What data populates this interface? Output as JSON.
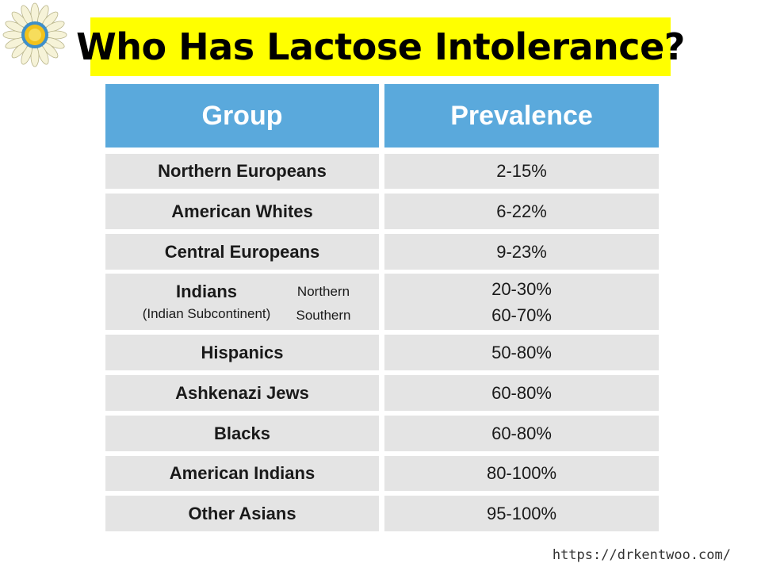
{
  "slide": {
    "title": "Who Has Lactose Intolerance?",
    "footer_url": "https://drkentwoo.com/"
  },
  "table": {
    "headers": [
      "Group",
      "Prevalence"
    ],
    "rows": [
      {
        "group": "Northern Europeans",
        "prevalence": "2-15%"
      },
      {
        "group": "American Whites",
        "prevalence": "6-22%"
      },
      {
        "group": "Central Europeans",
        "prevalence": "9-23%"
      },
      {
        "group": "Indians",
        "group_note": "(Indian Subcontinent)",
        "subgroups": [
          "Northern",
          "Southern"
        ],
        "prevalence_values": [
          "20-30%",
          "60-70%"
        ]
      },
      {
        "group": "Hispanics",
        "prevalence": "50-80%"
      },
      {
        "group": "Ashkenazi Jews",
        "prevalence": "60-80%"
      },
      {
        "group": "Blacks",
        "prevalence": "60-80%"
      },
      {
        "group": "American Indians",
        "prevalence": "80-100%"
      },
      {
        "group": "Other Asians",
        "prevalence": "95-100%"
      }
    ]
  },
  "colors": {
    "title_highlight": "#ffff00",
    "header_fill": "#5aa9dc",
    "row_fill": "#e4e4e4"
  },
  "logo_icon": "sunflower-icon"
}
